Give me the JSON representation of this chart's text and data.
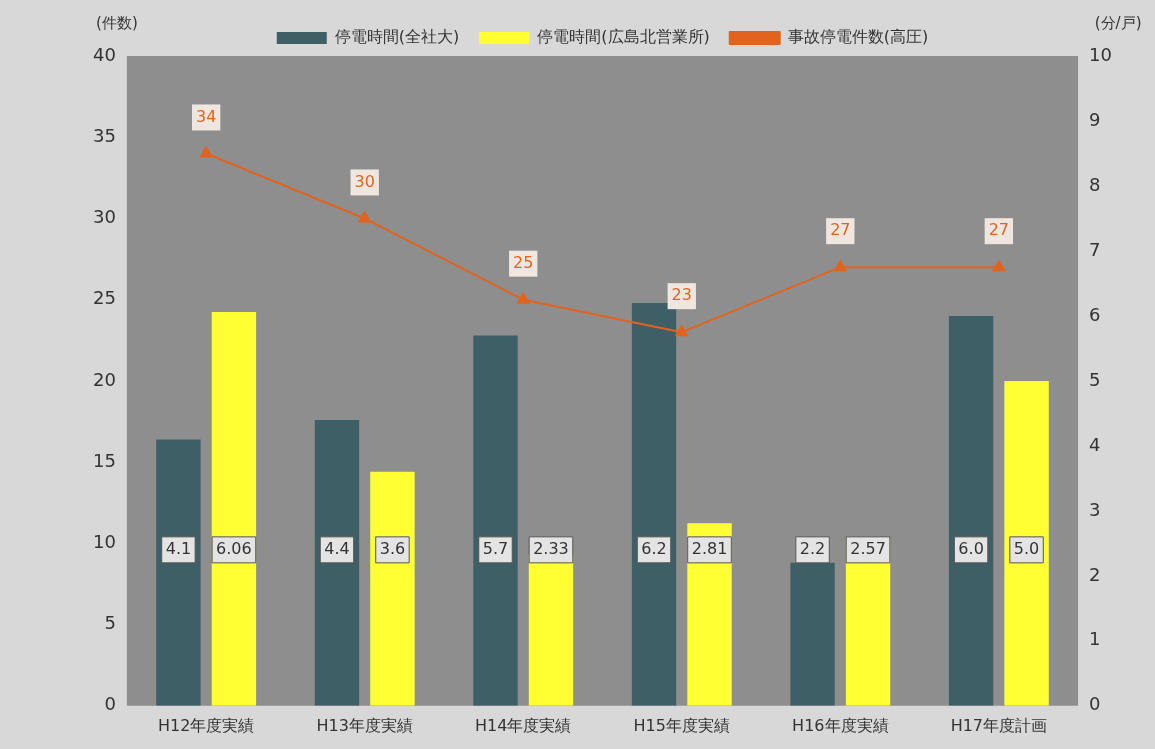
{
  "chart_data": {
    "type": "bar",
    "categories": [
      "H12年度実績",
      "H13年度実績",
      "H14年度実績",
      "H15年度実績",
      "H16年度実績",
      "H17年度計画"
    ],
    "ylabel": "(件数)",
    "y2label": "(分/戸)",
    "ylim": [
      0,
      40
    ],
    "yticks": [
      0,
      5,
      10,
      15,
      20,
      25,
      30,
      35,
      40
    ],
    "y2lim": [
      0,
      10
    ],
    "y2ticks": [
      0,
      1,
      2,
      3,
      4,
      5,
      6,
      7,
      8,
      9,
      10
    ],
    "series": [
      {
        "name": "停電時間(全社大)",
        "axis": "y2",
        "color": "#3f5f66",
        "values": [
          4.1,
          4.4,
          5.7,
          6.2,
          2.2,
          6.0
        ],
        "value_labels": [
          "4.1",
          "4.4",
          "5.7",
          "6.2",
          "2.2",
          "6.0"
        ]
      },
      {
        "name": "停電時間(広島北営業所)",
        "axis": "y2",
        "color": "#ffff33",
        "values": [
          6.06,
          3.6,
          2.33,
          2.81,
          2.57,
          5.0
        ],
        "value_labels": [
          "6.06",
          "3.6",
          "2.33",
          "2.81",
          "2.57",
          "5.0"
        ]
      },
      {
        "name": "事故停電件数(高圧)",
        "type": "line",
        "axis": "y",
        "color": "#e0641e",
        "marker": "triangle",
        "values": [
          34,
          30,
          25,
          23,
          27,
          27
        ],
        "value_labels": [
          "34",
          "30",
          "25",
          "23",
          "27",
          "27"
        ]
      }
    ],
    "legend": "top",
    "grid": false
  }
}
